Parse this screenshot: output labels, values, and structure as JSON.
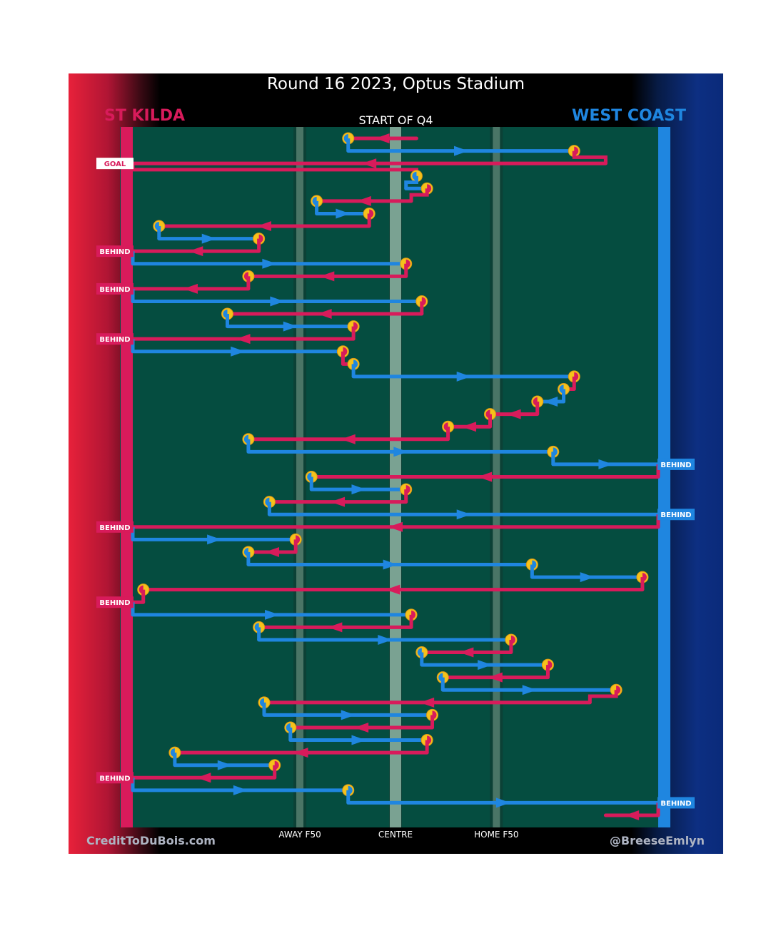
{
  "chart_data": {
    "type": "line",
    "title": "Round 16 2023, Optus Stadium",
    "subtitle": "START OF Q4",
    "teams": {
      "left": "ST KILDA",
      "right": "WEST COAST"
    },
    "colors": {
      "left_team": "#d81b5b",
      "right_team": "#1f86e0",
      "field": "#054d40",
      "marker": "#f5c21b"
    },
    "x_ticks": [
      "AWAY F50",
      "CENTRE",
      "HOME F50"
    ],
    "credits": {
      "left": "CreditToDuBois.com",
      "right": "@BreeseEmlyn"
    },
    "score_labels": [
      "GOAL",
      "BEHIND"
    ],
    "sequence": [
      {
        "team": "left",
        "from": 0.54,
        "to": 0.41,
        "end": "turnover"
      },
      {
        "team": "right",
        "from": 0.41,
        "to": 0.84,
        "end": "turnover"
      },
      {
        "team": "left",
        "from": 0.9,
        "to": 0.0,
        "end": "GOAL"
      },
      {
        "team": "left",
        "from": 0.54,
        "to": 0.54,
        "end": "turnover"
      },
      {
        "team": "right",
        "from": 0.52,
        "to": 0.56,
        "end": "turnover"
      },
      {
        "team": "left",
        "from": 0.53,
        "to": 0.35,
        "end": "turnover"
      },
      {
        "team": "right",
        "from": 0.35,
        "to": 0.45,
        "end": "turnover"
      },
      {
        "team": "left",
        "from": 0.45,
        "to": 0.05,
        "end": "turnover"
      },
      {
        "team": "right",
        "from": 0.05,
        "to": 0.24,
        "end": "turnover"
      },
      {
        "team": "left",
        "from": 0.24,
        "to": 0.0,
        "end": "BEHIND"
      },
      {
        "team": "right",
        "from": 0.0,
        "to": 0.52,
        "end": "turnover"
      },
      {
        "team": "left",
        "from": 0.52,
        "to": 0.22,
        "end": "turnover"
      },
      {
        "team": "left",
        "from": 0.22,
        "to": 0.0,
        "end": "BEHIND"
      },
      {
        "team": "right",
        "from": 0.0,
        "to": 0.55,
        "end": "turnover"
      },
      {
        "team": "left",
        "from": 0.55,
        "to": 0.18,
        "end": "turnover"
      },
      {
        "team": "right",
        "from": 0.18,
        "to": 0.42,
        "end": "turnover"
      },
      {
        "team": "left",
        "from": 0.42,
        "to": 0.0,
        "end": "BEHIND"
      },
      {
        "team": "right",
        "from": 0.0,
        "to": 0.4,
        "end": "turnover"
      },
      {
        "team": "left",
        "from": 0.4,
        "to": 0.42,
        "end": "turnover"
      },
      {
        "team": "right",
        "from": 0.42,
        "to": 0.84,
        "end": "turnover"
      },
      {
        "team": "left",
        "from": 0.84,
        "to": 0.82,
        "end": "turnover"
      },
      {
        "team": "right",
        "from": 0.82,
        "to": 0.77,
        "end": "turnover"
      },
      {
        "team": "left",
        "from": 0.77,
        "to": 0.68,
        "end": "turnover"
      },
      {
        "team": "left",
        "from": 0.68,
        "to": 0.6,
        "end": "turnover"
      },
      {
        "team": "left",
        "from": 0.6,
        "to": 0.22,
        "end": "turnover"
      },
      {
        "team": "right",
        "from": 0.22,
        "to": 0.8,
        "end": "turnover"
      },
      {
        "team": "right",
        "from": 0.8,
        "to": 1.0,
        "end": "BEHIND"
      },
      {
        "team": "left",
        "from": 1.0,
        "to": 0.34,
        "end": "turnover"
      },
      {
        "team": "right",
        "from": 0.34,
        "to": 0.52,
        "end": "turnover"
      },
      {
        "team": "left",
        "from": 0.52,
        "to": 0.26,
        "end": "turnover"
      },
      {
        "team": "right",
        "from": 0.26,
        "to": 1.0,
        "end": "BEHIND"
      },
      {
        "team": "left",
        "from": 1.0,
        "to": 0.0,
        "end": "BEHIND"
      },
      {
        "team": "right",
        "from": 0.0,
        "to": 0.31,
        "end": "turnover"
      },
      {
        "team": "left",
        "from": 0.31,
        "to": 0.22,
        "end": "turnover"
      },
      {
        "team": "right",
        "from": 0.22,
        "to": 0.76,
        "end": "turnover"
      },
      {
        "team": "right",
        "from": 0.76,
        "to": 0.97,
        "end": "turnover"
      },
      {
        "team": "left",
        "from": 0.97,
        "to": 0.02,
        "end": "turnover"
      },
      {
        "team": "left",
        "from": 0.02,
        "to": 0.0,
        "end": "BEHIND"
      },
      {
        "team": "right",
        "from": 0.0,
        "to": 0.53,
        "end": "turnover"
      },
      {
        "team": "left",
        "from": 0.53,
        "to": 0.24,
        "end": "turnover"
      },
      {
        "team": "right",
        "from": 0.24,
        "to": 0.72,
        "end": "turnover"
      },
      {
        "team": "left",
        "from": 0.72,
        "to": 0.55,
        "end": "turnover"
      },
      {
        "team": "right",
        "from": 0.55,
        "to": 0.79,
        "end": "turnover"
      },
      {
        "team": "left",
        "from": 0.79,
        "to": 0.59,
        "end": "turnover"
      },
      {
        "team": "right",
        "from": 0.59,
        "to": 0.92,
        "end": "turnover"
      },
      {
        "team": "left",
        "from": 0.87,
        "to": 0.25,
        "end": "turnover"
      },
      {
        "team": "right",
        "from": 0.25,
        "to": 0.57,
        "end": "turnover"
      },
      {
        "team": "left",
        "from": 0.57,
        "to": 0.3,
        "end": "turnover"
      },
      {
        "team": "right",
        "from": 0.3,
        "to": 0.56,
        "end": "turnover"
      },
      {
        "team": "left",
        "from": 0.56,
        "to": 0.08,
        "end": "turnover"
      },
      {
        "team": "right",
        "from": 0.08,
        "to": 0.27,
        "end": "turnover"
      },
      {
        "team": "left",
        "from": 0.27,
        "to": 0.0,
        "end": "BEHIND"
      },
      {
        "team": "right",
        "from": 0.0,
        "to": 0.41,
        "end": "turnover"
      },
      {
        "team": "right",
        "from": 0.41,
        "to": 1.0,
        "end": "BEHIND"
      },
      {
        "team": "left",
        "from": 1.0,
        "to": 0.9,
        "end": "end"
      }
    ]
  }
}
